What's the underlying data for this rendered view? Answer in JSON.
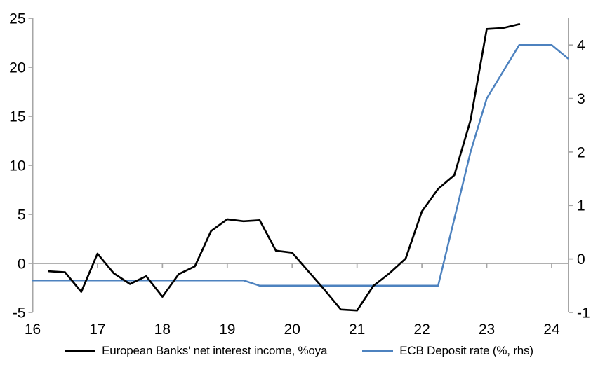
{
  "chart_data": {
    "type": "line",
    "title": "",
    "axis_color": "#a6a6a6",
    "background_color": "#ffffff",
    "grid": "zero-line-only",
    "legend_position": "bottom",
    "x_axis": {
      "ticks": [
        "16",
        "17",
        "18",
        "19",
        "20",
        "21",
        "22",
        "23",
        "24"
      ],
      "tick_values": [
        16,
        17,
        18,
        19,
        20,
        21,
        22,
        23,
        24
      ],
      "range": [
        16,
        24.26
      ]
    },
    "left_axis": {
      "ticks": [
        "25",
        "20",
        "15",
        "10",
        "5",
        "0",
        "-5"
      ],
      "tick_values": [
        25,
        20,
        15,
        10,
        5,
        0,
        -5
      ],
      "range": [
        -5,
        25
      ]
    },
    "right_axis": {
      "ticks": [
        "4",
        "3",
        "2",
        "1",
        "0",
        "-1"
      ],
      "tick_values": [
        4,
        3,
        2,
        1,
        0,
        -1
      ],
      "range": [
        -1,
        4.5
      ]
    },
    "series": [
      {
        "name": "European Banks' net interest income, %oya",
        "axis": "left",
        "color": "#000000",
        "stroke_width": 2.7,
        "x": [
          16.25,
          16.5,
          16.75,
          17.0,
          17.25,
          17.5,
          17.75,
          18.0,
          18.25,
          18.5,
          18.75,
          19.0,
          19.25,
          19.5,
          19.75,
          20.0,
          20.25,
          20.5,
          20.75,
          21.0,
          21.25,
          21.5,
          21.75,
          22.0,
          22.25,
          22.5,
          22.75,
          23.0,
          23.25,
          23.5
        ],
        "values": [
          -0.8,
          -0.9,
          -2.9,
          1.0,
          -1.0,
          -2.1,
          -1.3,
          -3.4,
          -1.1,
          -0.3,
          3.3,
          4.5,
          4.3,
          4.4,
          1.3,
          1.1,
          -0.8,
          -2.7,
          -4.7,
          -4.8,
          -2.3,
          -1.0,
          0.5,
          5.3,
          7.6,
          9.0,
          14.6,
          23.9,
          24.0,
          24.4
        ]
      },
      {
        "name": "ECB Deposit rate (%, rhs)",
        "axis": "right",
        "color": "#4d82bf",
        "stroke_width": 2.5,
        "x": [
          16.0,
          19.25,
          19.5,
          22.25,
          22.5,
          22.75,
          23.0,
          23.25,
          23.5,
          23.75,
          24.0,
          24.25
        ],
        "values": [
          -0.4,
          -0.4,
          -0.5,
          -0.5,
          0.75,
          2.0,
          3.0,
          3.5,
          4.0,
          4.0,
          4.0,
          3.75
        ]
      }
    ]
  }
}
